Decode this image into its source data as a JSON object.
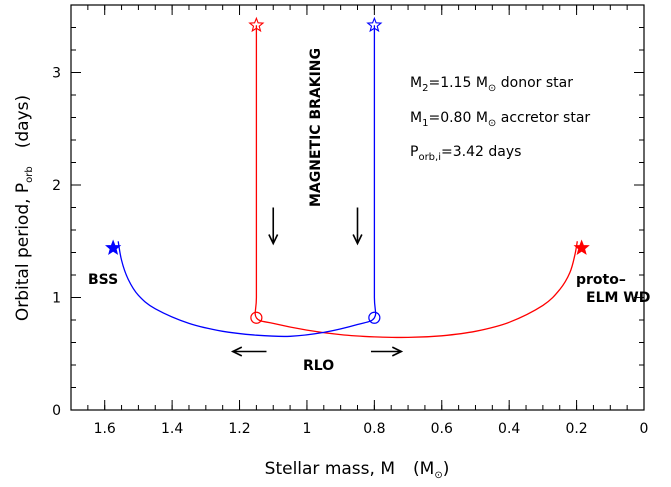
{
  "chart_data": {
    "type": "line",
    "title": "",
    "xlim": [
      1.7,
      0.0
    ],
    "ylim": [
      0,
      3.6
    ],
    "x_ticks": [
      1.6,
      1.4,
      1.2,
      1.0,
      0.8,
      0.6,
      0.4,
      0.2,
      0.0
    ],
    "x_tick_labels": [
      "1.6",
      "1.4",
      "1.2",
      "1",
      "0.8",
      "0.6",
      "0.4",
      "0.2",
      "0"
    ],
    "y_ticks": [
      0,
      1,
      2,
      3
    ],
    "y_tick_labels": [
      "0",
      "1",
      "2",
      "3"
    ],
    "xlabel": {
      "main": "Stellar mass, M",
      "unit_open": "(M",
      "unit_sub": "⊙",
      "unit_close": ")"
    },
    "ylabel": {
      "main": "Orbital period, P",
      "sub": "orb",
      "unit": "(days)"
    },
    "series": [
      {
        "color": "#ff0000",
        "x": [
          1.15,
          1.15,
          1.15,
          1.15,
          1.15,
          1.15,
          1.15,
          1.1,
          1.0,
          0.9,
          0.8,
          0.7,
          0.6,
          0.5,
          0.4,
          0.3,
          0.25,
          0.22,
          0.205,
          0.198
        ],
        "y": [
          3.42,
          3.0,
          2.5,
          2.0,
          1.5,
          1.0,
          0.82,
          0.77,
          0.71,
          0.67,
          0.65,
          0.645,
          0.66,
          0.7,
          0.78,
          0.93,
          1.07,
          1.22,
          1.38,
          1.5
        ]
      },
      {
        "color": "#0000ff",
        "x": [
          0.8,
          0.8,
          0.8,
          0.8,
          0.8,
          0.8,
          0.8,
          0.85,
          0.95,
          1.05,
          1.15,
          1.25,
          1.35,
          1.45,
          1.5,
          1.53,
          1.55,
          1.56
        ],
        "y": [
          3.42,
          3.0,
          2.5,
          2.0,
          1.5,
          1.0,
          0.82,
          0.76,
          0.69,
          0.655,
          0.665,
          0.7,
          0.77,
          0.9,
          1.02,
          1.16,
          1.33,
          1.5
        ]
      }
    ],
    "markers": [
      {
        "type": "open-star",
        "x": 1.15,
        "y": 3.42,
        "color": "#ff0000"
      },
      {
        "type": "open-star",
        "x": 0.8,
        "y": 3.42,
        "color": "#0000ff"
      },
      {
        "type": "open-circle",
        "x": 1.15,
        "y": 0.82,
        "color": "#ff0000"
      },
      {
        "type": "open-circle",
        "x": 0.8,
        "y": 0.82,
        "color": "#0000ff"
      },
      {
        "type": "filled-star",
        "x": 1.575,
        "y": 1.44,
        "color": "#0000ff"
      },
      {
        "type": "filled-star",
        "x": 0.185,
        "y": 1.44,
        "color": "#ff0000"
      }
    ],
    "arrows": [
      {
        "direction": "down",
        "x": 1.1,
        "y_from": 1.8,
        "y_to": 1.48
      },
      {
        "direction": "down",
        "x": 0.85,
        "y_from": 1.8,
        "y_to": 1.48
      },
      {
        "direction": "left",
        "y": 0.52,
        "x_from": 1.12,
        "x_to": 1.22
      },
      {
        "direction": "right",
        "y": 0.52,
        "x_from": 0.81,
        "x_to": 0.72
      }
    ],
    "annotations": {
      "magnetic_braking": "MAGNETIC BRAKING",
      "rlo": "RLO",
      "bss": "BSS",
      "proto_line1": "proto–",
      "proto_line2": "ELM WD"
    },
    "info": {
      "m2": {
        "pre": "M",
        "sub": "2",
        "value": "=1.15 M",
        "sym": "⊙",
        "post": " donor star"
      },
      "m1": {
        "pre": "M",
        "sub": "1",
        "value": "=0.80 M",
        "sym": "⊙",
        "post": " accretor star"
      },
      "porb": {
        "pre": "P",
        "sub": "orb,i",
        "post": "=3.42 days"
      }
    }
  }
}
